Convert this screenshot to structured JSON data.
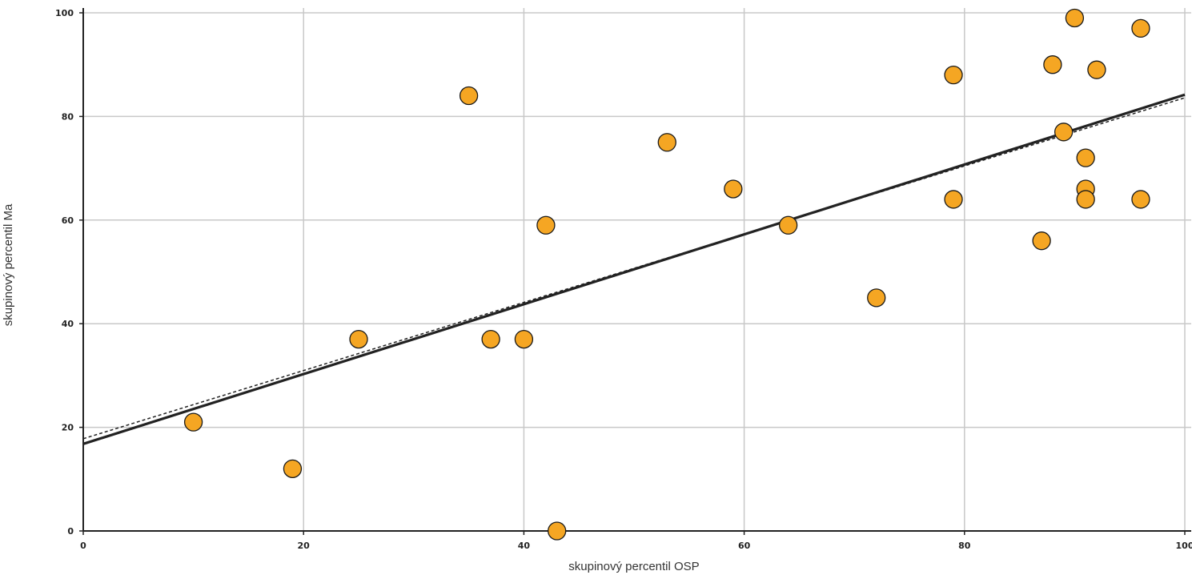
{
  "chart_data": {
    "type": "scatter",
    "xlabel": "skupinový percentil OSP",
    "ylabel": "skupinový percentil Ma",
    "xlim": [
      0,
      100
    ],
    "ylim": [
      0,
      100
    ],
    "x_ticks": [
      "0",
      "20",
      "40",
      "60",
      "80",
      "100"
    ],
    "y_ticks": [
      "0",
      "20",
      "40",
      "60",
      "80",
      "100"
    ],
    "grid": true,
    "point_color": "#F5A623",
    "line_color": "#222222",
    "points": [
      {
        "x": 10,
        "y": 21
      },
      {
        "x": 19,
        "y": 12
      },
      {
        "x": 25,
        "y": 37
      },
      {
        "x": 35,
        "y": 84
      },
      {
        "x": 37,
        "y": 37
      },
      {
        "x": 40,
        "y": 37
      },
      {
        "x": 42,
        "y": 59
      },
      {
        "x": 43,
        "y": 0
      },
      {
        "x": 53,
        "y": 75
      },
      {
        "x": 59,
        "y": 66
      },
      {
        "x": 64,
        "y": 59
      },
      {
        "x": 72,
        "y": 45
      },
      {
        "x": 79,
        "y": 88
      },
      {
        "x": 79,
        "y": 64
      },
      {
        "x": 87,
        "y": 56
      },
      {
        "x": 88,
        "y": 90
      },
      {
        "x": 89,
        "y": 77
      },
      {
        "x": 90,
        "y": 99
      },
      {
        "x": 91,
        "y": 72
      },
      {
        "x": 91,
        "y": 66
      },
      {
        "x": 91,
        "y": 64
      },
      {
        "x": 92,
        "y": 89
      },
      {
        "x": 96,
        "y": 97
      },
      {
        "x": 96,
        "y": 64
      }
    ],
    "trend_lines": [
      {
        "style": "solid",
        "x": [
          0,
          100
        ],
        "y": [
          16.8,
          84.2
        ]
      },
      {
        "style": "dashed",
        "x": [
          0,
          100
        ],
        "y": [
          17.8,
          83.6
        ]
      }
    ]
  }
}
